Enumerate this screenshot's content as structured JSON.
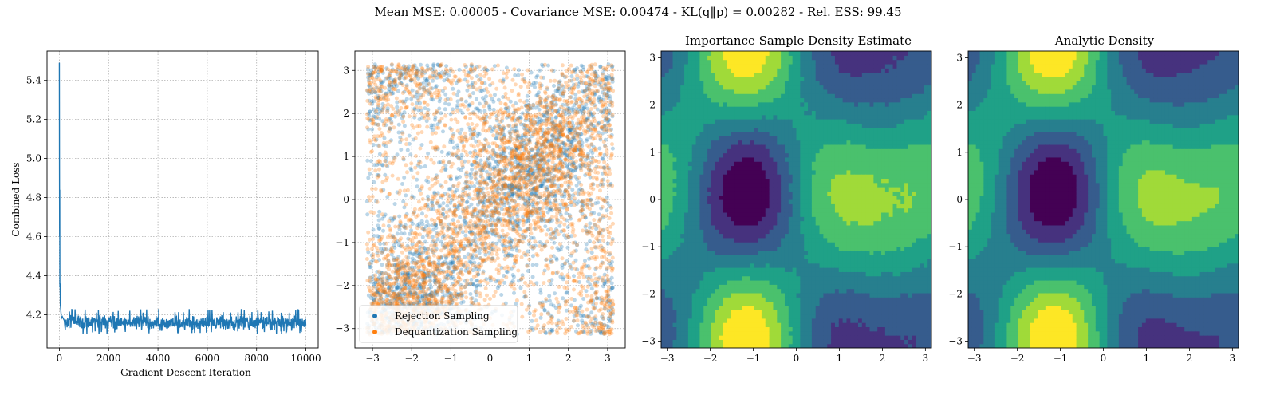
{
  "figure": {
    "suptitle": "Mean MSE: 0.00005 - Covariance MSE: 0.00474 - KL(q‖p) = 0.00282 - Rel. ESS: 99.45"
  },
  "chart_data": [
    {
      "type": "line",
      "title": "",
      "xlabel": "Gradient Descent Iteration",
      "ylabel": "Combined Loss",
      "xlim": [
        -500,
        10500
      ],
      "ylim": [
        4.03,
        5.55
      ],
      "xticks": [
        0,
        2000,
        4000,
        6000,
        8000,
        10000
      ],
      "yticks": [
        4.2,
        4.4,
        4.6,
        4.8,
        5.0,
        5.2,
        5.4
      ],
      "grid": true,
      "color": "#1f77b4",
      "series": [
        {
          "name": "",
          "initial": [
            [
              0,
              5.49
            ],
            [
              5,
              4.95
            ],
            [
              10,
              4.6
            ],
            [
              15,
              4.84
            ],
            [
              20,
              4.34
            ],
            [
              30,
              4.36
            ],
            [
              40,
              4.25
            ],
            [
              60,
              4.22
            ],
            [
              80,
              4.18
            ],
            [
              120,
              4.19
            ],
            [
              200,
              4.17
            ]
          ],
          "steady_mean": 4.16,
          "steady_band": [
            4.1,
            4.23
          ],
          "x_end": 10000
        }
      ]
    },
    {
      "type": "scatter",
      "title": "",
      "xlim": [
        -3.45,
        3.45
      ],
      "ylim": [
        -3.45,
        3.45
      ],
      "xticks": [
        -3,
        -2,
        -1,
        0,
        1,
        2,
        3
      ],
      "yticks": [
        -3,
        -2,
        -1,
        0,
        1,
        2,
        3
      ],
      "grid": true,
      "legend_position": "lower-left",
      "points_range": [
        -3.14159,
        3.14159
      ],
      "series": [
        {
          "name": "Rejection Sampling",
          "color": "#1f77b4",
          "alpha": 0.3
        },
        {
          "name": "Dequantization Sampling",
          "color": "#ff7f0e",
          "alpha": 0.3
        }
      ]
    },
    {
      "type": "heatmap",
      "subtype": "filled-contour",
      "title": "Importance Sample Density Estimate",
      "xlim": [
        -3.14159,
        3.14159
      ],
      "ylim": [
        -3.14159,
        3.14159
      ],
      "xticks": [
        -3,
        -2,
        -1,
        0,
        1,
        2,
        3
      ],
      "yticks": [
        -3,
        -2,
        -1,
        0,
        1,
        2,
        3
      ],
      "colormap": [
        "#440154",
        "#46327e",
        "#365c8d",
        "#277f8e",
        "#1fa187",
        "#4ac16d",
        "#a0da39",
        "#fde725"
      ],
      "noise": 0.05
    },
    {
      "type": "heatmap",
      "subtype": "filled-contour",
      "title": "Analytic Density",
      "xlim": [
        -3.14159,
        3.14159
      ],
      "ylim": [
        -3.14159,
        3.14159
      ],
      "xticks": [
        -3,
        -2,
        -1,
        0,
        1,
        2,
        3
      ],
      "yticks": [
        -3,
        -2,
        -1,
        0,
        1,
        2,
        3
      ],
      "colormap": [
        "#440154",
        "#46327e",
        "#365c8d",
        "#277f8e",
        "#1fa187",
        "#4ac16d",
        "#a0da39",
        "#fde725"
      ],
      "noise": 0
    }
  ]
}
